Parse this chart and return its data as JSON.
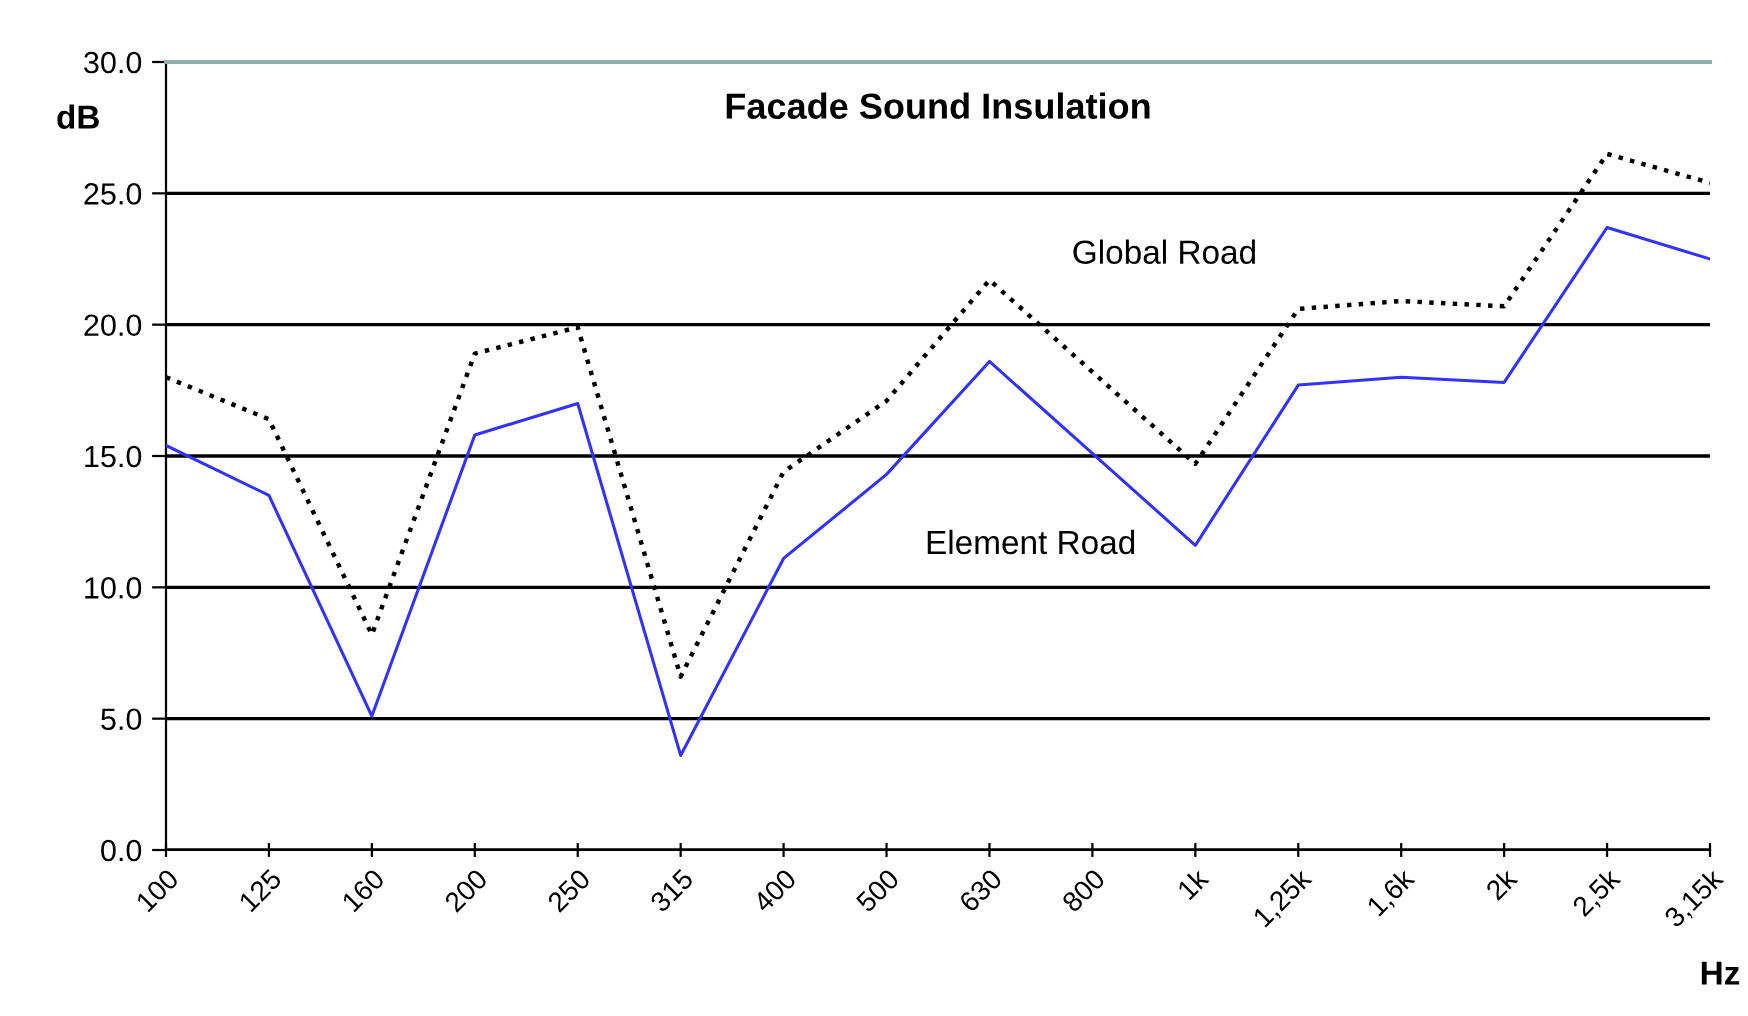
{
  "chart_data": {
    "type": "line",
    "title": "Facade Sound Insulation",
    "ylabel": "dB",
    "xlabel": "Hz",
    "categories": [
      "100",
      "125",
      "160",
      "200",
      "250",
      "315",
      "400",
      "500",
      "630",
      "800",
      "1k",
      "1,25k",
      "1,6k",
      "2k",
      "2,5k",
      "3,15k"
    ],
    "series": [
      {
        "name": "Global Road",
        "color": "#000000",
        "line_style": "dotted",
        "values": [
          18.0,
          16.4,
          8.2,
          18.9,
          19.9,
          6.6,
          14.4,
          17.1,
          21.7,
          18.2,
          14.7,
          20.6,
          20.9,
          20.7,
          26.5,
          25.4
        ]
      },
      {
        "name": "Element Road",
        "color": "#3333ff",
        "line_style": "solid",
        "values": [
          15.4,
          13.5,
          5.1,
          15.8,
          17.0,
          3.6,
          11.1,
          14.3,
          18.6,
          15.1,
          11.6,
          17.7,
          18.0,
          17.8,
          23.7,
          22.5
        ]
      }
    ],
    "ylim": [
      0,
      30
    ],
    "yticks": [
      {
        "value": 0,
        "label": "0.0"
      },
      {
        "value": 5,
        "label": "5.0"
      },
      {
        "value": 10,
        "label": "10.0"
      },
      {
        "value": 15,
        "label": "15.0"
      },
      {
        "value": 20,
        "label": "20.0"
      },
      {
        "value": 25,
        "label": "25.0"
      },
      {
        "value": 30,
        "label": "30.0"
      }
    ],
    "grid": "y",
    "legend": false,
    "marker": "none"
  }
}
